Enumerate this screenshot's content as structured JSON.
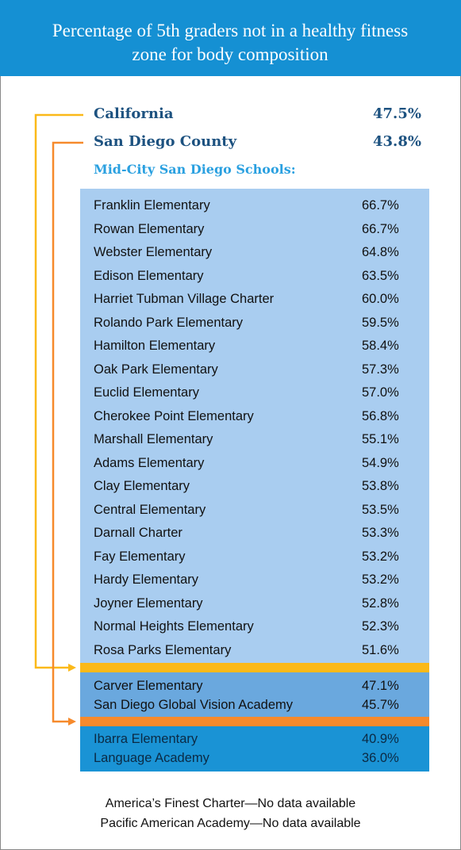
{
  "header": {
    "title": "Percentage of 5th graders not in a healthy fitness zone for body composition"
  },
  "summary": [
    {
      "name": "California",
      "value": "47.5%"
    },
    {
      "name": "San Diego County",
      "value": "43.8%"
    }
  ],
  "table": {
    "title": "Mid-City San Diego Schools:",
    "groups": [
      {
        "rows": [
          [
            "Franklin Elementary",
            "66.7%"
          ],
          [
            "Rowan Elementary",
            "66.7%"
          ],
          [
            "Webster Elementary",
            "64.8%"
          ],
          [
            "Edison Elementary",
            "63.5%"
          ],
          [
            "Harriet Tubman Village Charter",
            "60.0%"
          ],
          [
            "Rolando Park Elementary",
            "59.5%"
          ],
          [
            "Hamilton Elementary",
            "58.4%"
          ],
          [
            "Oak Park Elementary",
            "57.3%"
          ],
          [
            "Euclid Elementary",
            "57.0%"
          ],
          [
            "Cherokee Point Elementary",
            "56.8%"
          ],
          [
            "Marshall Elementary",
            "55.1%"
          ],
          [
            "Adams Elementary",
            "54.9%"
          ],
          [
            "Clay Elementary",
            "53.8%"
          ],
          [
            "Central Elementary",
            "53.5%"
          ],
          [
            "Darnall Charter",
            "53.3%"
          ],
          [
            "Fay Elementary",
            "53.2%"
          ],
          [
            "Hardy Elementary",
            "53.2%"
          ],
          [
            "Joyner Elementary",
            "52.8%"
          ],
          [
            "Normal Heights Elementary",
            "52.3%"
          ],
          [
            "Rosa Parks Elementary",
            "51.6%"
          ]
        ]
      },
      {
        "rows": [
          [
            "Carver Elementary",
            "47.1%"
          ],
          [
            "San Diego Global Vision Academy",
            "45.7%"
          ]
        ]
      },
      {
        "rows": [
          [
            "Ibarra Elementary",
            "40.9%"
          ],
          [
            "Language Academy",
            "36.0%"
          ]
        ]
      }
    ]
  },
  "notes": [
    "America’s Finest Charter—No data available",
    "Pacific American Academy—No data available"
  ]
}
